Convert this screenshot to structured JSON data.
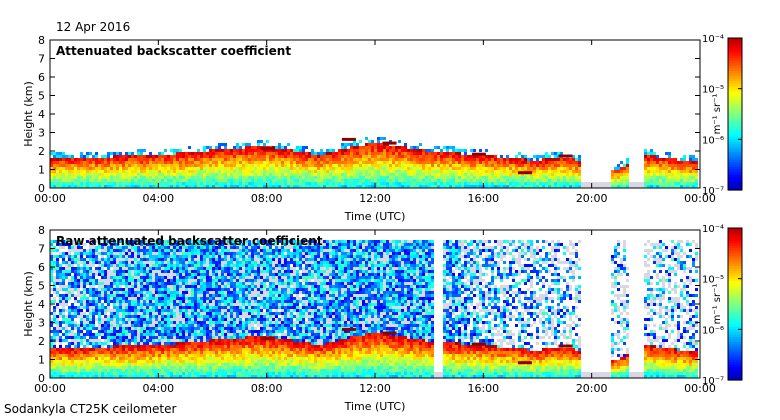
{
  "date": "12 Apr 2016",
  "instrument": "Sodankyla CT25K ceilometer",
  "chart_data": [
    {
      "type": "heatmap",
      "title": "Attenuated backscatter coefficient",
      "xlabel": "Time (UTC)",
      "ylabel": "Height (km)",
      "x_ticks": [
        "00:00",
        "04:00",
        "08:00",
        "12:00",
        "16:00",
        "20:00",
        "00:00"
      ],
      "xlim_hours": [
        0,
        24
      ],
      "y_ticks": [
        0,
        1,
        2,
        3,
        4,
        5,
        6,
        7,
        8
      ],
      "ylim": [
        0,
        8
      ],
      "colorbar": {
        "scale": "log",
        "range": [
          1e-07,
          0.0001
        ],
        "unit": "m⁻¹ sr⁻¹",
        "ticks": [
          "10⁻⁴",
          "10⁻⁵",
          "10⁻⁶",
          "10⁻⁷"
        ],
        "colormap": "jet"
      },
      "features": {
        "boundary_layer_top_km": [
          [
            0,
            1.6
          ],
          [
            4,
            1.8
          ],
          [
            8,
            2.3
          ],
          [
            10,
            1.8
          ],
          [
            12,
            2.5
          ],
          [
            14,
            2.0
          ],
          [
            16,
            1.8
          ],
          [
            18,
            1.5
          ],
          [
            19,
            1.7
          ],
          [
            21,
            1.0
          ],
          [
            22,
            1.8
          ],
          [
            24,
            1.4
          ]
        ],
        "cloud_base_km": [
          [
            8,
            2.1
          ],
          [
            11,
            2.6
          ],
          [
            12.5,
            2.4
          ],
          [
            15.8,
            1.8
          ],
          [
            17.5,
            0.8
          ],
          [
            19,
            1.7
          ]
        ],
        "missing_data_hours": [
          [
            19.7,
            20.8
          ],
          [
            21.5,
            22.0
          ]
        ]
      }
    },
    {
      "type": "heatmap",
      "title": "Raw attenuated backscatter coefficient",
      "xlabel": "Time (UTC)",
      "ylabel": "Height (km)",
      "x_ticks": [
        "00:00",
        "04:00",
        "08:00",
        "12:00",
        "16:00",
        "20:00",
        "00:00"
      ],
      "xlim_hours": [
        0,
        24
      ],
      "y_ticks": [
        0,
        1,
        2,
        3,
        4,
        5,
        6,
        7,
        8
      ],
      "ylim": [
        0,
        8
      ],
      "colorbar": {
        "scale": "log",
        "range": [
          1e-07,
          0.0001
        ],
        "unit": "m⁻¹ sr⁻¹",
        "ticks": [
          "10⁻⁴",
          "10⁻⁵",
          "10⁻⁶",
          "10⁻⁷"
        ],
        "colormap": "jet"
      },
      "features": {
        "noise_peak_hours": [
          5,
          13
        ],
        "data_top_km": 7.5,
        "missing_data_hours": [
          [
            14.2,
            14.5
          ],
          [
            19.7,
            20.8
          ],
          [
            21.5,
            22.0
          ]
        ]
      }
    }
  ]
}
